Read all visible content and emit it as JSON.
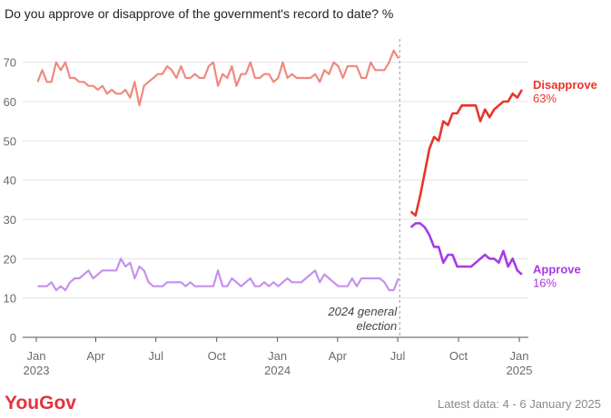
{
  "chart_data": {
    "type": "line",
    "title": "Do you approve or disapprove of the government's record to date? %",
    "ylim": [
      0,
      75
    ],
    "yticks": [
      0,
      10,
      20,
      30,
      40,
      50,
      60,
      70
    ],
    "grid": true,
    "xticks": [
      {
        "date": "2023-01-01",
        "label": "Jan",
        "label2": "2023"
      },
      {
        "date": "2023-04-01",
        "label": "Apr",
        "label2": ""
      },
      {
        "date": "2023-07-01",
        "label": "Jul",
        "label2": ""
      },
      {
        "date": "2023-10-01",
        "label": "Oct",
        "label2": ""
      },
      {
        "date": "2024-01-01",
        "label": "Jan",
        "label2": "2024"
      },
      {
        "date": "2024-04-01",
        "label": "Apr",
        "label2": ""
      },
      {
        "date": "2024-07-01",
        "label": "Jul",
        "label2": ""
      },
      {
        "date": "2024-10-01",
        "label": "Oct",
        "label2": ""
      },
      {
        "date": "2025-01-01",
        "label": "Jan",
        "label2": "2025"
      }
    ],
    "annotation": {
      "date": "2024-07-04",
      "lines": [
        "2024 general",
        "election"
      ]
    },
    "series": [
      {
        "name": "Disapprove",
        "end_label": "63%",
        "color": "#e8352b",
        "pre_color": "#f0897e",
        "points": [
          [
            "2023-01-03",
            65
          ],
          [
            "2023-01-10",
            68
          ],
          [
            "2023-01-17",
            65
          ],
          [
            "2023-01-24",
            65
          ],
          [
            "2023-01-31",
            70
          ],
          [
            "2023-02-07",
            68
          ],
          [
            "2023-02-14",
            70
          ],
          [
            "2023-02-21",
            66
          ],
          [
            "2023-02-28",
            66
          ],
          [
            "2023-03-07",
            65
          ],
          [
            "2023-03-14",
            65
          ],
          [
            "2023-03-21",
            64
          ],
          [
            "2023-03-28",
            64
          ],
          [
            "2023-04-04",
            63
          ],
          [
            "2023-04-11",
            64
          ],
          [
            "2023-04-18",
            62
          ],
          [
            "2023-04-25",
            63
          ],
          [
            "2023-05-02",
            62
          ],
          [
            "2023-05-09",
            62
          ],
          [
            "2023-05-16",
            63
          ],
          [
            "2023-05-23",
            61
          ],
          [
            "2023-05-30",
            65
          ],
          [
            "2023-06-06",
            59
          ],
          [
            "2023-06-13",
            64
          ],
          [
            "2023-06-20",
            65
          ],
          [
            "2023-06-27",
            66
          ],
          [
            "2023-07-04",
            67
          ],
          [
            "2023-07-11",
            67
          ],
          [
            "2023-07-18",
            69
          ],
          [
            "2023-07-25",
            68
          ],
          [
            "2023-08-01",
            66
          ],
          [
            "2023-08-08",
            69
          ],
          [
            "2023-08-15",
            66
          ],
          [
            "2023-08-22",
            66
          ],
          [
            "2023-08-29",
            67
          ],
          [
            "2023-09-05",
            66
          ],
          [
            "2023-09-12",
            66
          ],
          [
            "2023-09-19",
            69
          ],
          [
            "2023-09-26",
            70
          ],
          [
            "2023-10-03",
            64
          ],
          [
            "2023-10-10",
            67
          ],
          [
            "2023-10-17",
            66
          ],
          [
            "2023-10-24",
            69
          ],
          [
            "2023-10-31",
            64
          ],
          [
            "2023-11-07",
            67
          ],
          [
            "2023-11-14",
            67
          ],
          [
            "2023-11-21",
            70
          ],
          [
            "2023-11-28",
            66
          ],
          [
            "2023-12-05",
            66
          ],
          [
            "2023-12-12",
            67
          ],
          [
            "2023-12-19",
            67
          ],
          [
            "2023-12-26",
            65
          ],
          [
            "2024-01-02",
            66
          ],
          [
            "2024-01-09",
            70
          ],
          [
            "2024-01-16",
            66
          ],
          [
            "2024-01-23",
            67
          ],
          [
            "2024-01-30",
            66
          ],
          [
            "2024-02-06",
            66
          ],
          [
            "2024-02-13",
            66
          ],
          [
            "2024-02-20",
            66
          ],
          [
            "2024-02-27",
            67
          ],
          [
            "2024-03-05",
            65
          ],
          [
            "2024-03-12",
            68
          ],
          [
            "2024-03-19",
            67
          ],
          [
            "2024-03-26",
            70
          ],
          [
            "2024-04-02",
            69
          ],
          [
            "2024-04-09",
            66
          ],
          [
            "2024-04-16",
            69
          ],
          [
            "2024-04-23",
            69
          ],
          [
            "2024-04-30",
            69
          ],
          [
            "2024-05-07",
            66
          ],
          [
            "2024-05-14",
            66
          ],
          [
            "2024-05-21",
            70
          ],
          [
            "2024-05-28",
            68
          ],
          [
            "2024-06-04",
            68
          ],
          [
            "2024-06-11",
            68
          ],
          [
            "2024-06-18",
            70
          ],
          [
            "2024-06-25",
            73
          ],
          [
            "2024-07-02",
            71
          ]
        ],
        "post_points": [
          [
            "2024-07-21",
            32
          ],
          [
            "2024-07-28",
            31
          ],
          [
            "2024-08-04",
            36
          ],
          [
            "2024-08-11",
            42
          ],
          [
            "2024-08-18",
            48
          ],
          [
            "2024-08-25",
            51
          ],
          [
            "2024-09-01",
            50
          ],
          [
            "2024-09-08",
            55
          ],
          [
            "2024-09-15",
            54
          ],
          [
            "2024-09-22",
            57
          ],
          [
            "2024-09-29",
            57
          ],
          [
            "2024-10-06",
            59
          ],
          [
            "2024-10-13",
            59
          ],
          [
            "2024-10-20",
            59
          ],
          [
            "2024-10-27",
            59
          ],
          [
            "2024-11-03",
            55
          ],
          [
            "2024-11-10",
            58
          ],
          [
            "2024-11-17",
            56
          ],
          [
            "2024-11-24",
            58
          ],
          [
            "2024-12-01",
            59
          ],
          [
            "2024-12-08",
            60
          ],
          [
            "2024-12-15",
            60
          ],
          [
            "2024-12-22",
            62
          ],
          [
            "2024-12-29",
            61
          ],
          [
            "2025-01-05",
            63
          ]
        ]
      },
      {
        "name": "Approve",
        "end_label": "16%",
        "color": "#a73ae6",
        "pre_color": "#c590ee",
        "points": [
          [
            "2023-01-03",
            13
          ],
          [
            "2023-01-10",
            13
          ],
          [
            "2023-01-17",
            13
          ],
          [
            "2023-01-24",
            14
          ],
          [
            "2023-01-31",
            12
          ],
          [
            "2023-02-07",
            13
          ],
          [
            "2023-02-14",
            12
          ],
          [
            "2023-02-21",
            14
          ],
          [
            "2023-02-28",
            15
          ],
          [
            "2023-03-07",
            15
          ],
          [
            "2023-03-14",
            16
          ],
          [
            "2023-03-21",
            17
          ],
          [
            "2023-03-28",
            15
          ],
          [
            "2023-04-04",
            16
          ],
          [
            "2023-04-11",
            17
          ],
          [
            "2023-04-18",
            17
          ],
          [
            "2023-04-25",
            17
          ],
          [
            "2023-05-02",
            17
          ],
          [
            "2023-05-09",
            20
          ],
          [
            "2023-05-16",
            18
          ],
          [
            "2023-05-23",
            19
          ],
          [
            "2023-05-30",
            15
          ],
          [
            "2023-06-06",
            18
          ],
          [
            "2023-06-13",
            17
          ],
          [
            "2023-06-20",
            14
          ],
          [
            "2023-06-27",
            13
          ],
          [
            "2023-07-04",
            13
          ],
          [
            "2023-07-11",
            13
          ],
          [
            "2023-07-18",
            14
          ],
          [
            "2023-07-25",
            14
          ],
          [
            "2023-08-01",
            14
          ],
          [
            "2023-08-08",
            14
          ],
          [
            "2023-08-15",
            13
          ],
          [
            "2023-08-22",
            14
          ],
          [
            "2023-08-29",
            13
          ],
          [
            "2023-09-05",
            13
          ],
          [
            "2023-09-12",
            13
          ],
          [
            "2023-09-19",
            13
          ],
          [
            "2023-09-26",
            13
          ],
          [
            "2023-10-03",
            17
          ],
          [
            "2023-10-10",
            13
          ],
          [
            "2023-10-17",
            13
          ],
          [
            "2023-10-24",
            15
          ],
          [
            "2023-10-31",
            14
          ],
          [
            "2023-11-07",
            13
          ],
          [
            "2023-11-14",
            14
          ],
          [
            "2023-11-21",
            15
          ],
          [
            "2023-11-28",
            13
          ],
          [
            "2023-12-05",
            13
          ],
          [
            "2023-12-12",
            14
          ],
          [
            "2023-12-19",
            13
          ],
          [
            "2023-12-26",
            14
          ],
          [
            "2024-01-02",
            13
          ],
          [
            "2024-01-09",
            14
          ],
          [
            "2024-01-16",
            15
          ],
          [
            "2024-01-23",
            14
          ],
          [
            "2024-01-30",
            14
          ],
          [
            "2024-02-06",
            14
          ],
          [
            "2024-02-13",
            15
          ],
          [
            "2024-02-20",
            16
          ],
          [
            "2024-02-27",
            17
          ],
          [
            "2024-03-05",
            14
          ],
          [
            "2024-03-12",
            16
          ],
          [
            "2024-03-19",
            15
          ],
          [
            "2024-03-26",
            14
          ],
          [
            "2024-04-02",
            13
          ],
          [
            "2024-04-09",
            13
          ],
          [
            "2024-04-16",
            13
          ],
          [
            "2024-04-23",
            15
          ],
          [
            "2024-04-30",
            13
          ],
          [
            "2024-05-07",
            15
          ],
          [
            "2024-05-14",
            15
          ],
          [
            "2024-05-21",
            15
          ],
          [
            "2024-05-28",
            15
          ],
          [
            "2024-06-04",
            15
          ],
          [
            "2024-06-11",
            14
          ],
          [
            "2024-06-18",
            12
          ],
          [
            "2024-06-25",
            12
          ],
          [
            "2024-07-02",
            15
          ]
        ],
        "post_points": [
          [
            "2024-07-21",
            28
          ],
          [
            "2024-07-28",
            29
          ],
          [
            "2024-08-04",
            29
          ],
          [
            "2024-08-11",
            28
          ],
          [
            "2024-08-18",
            26
          ],
          [
            "2024-08-25",
            23
          ],
          [
            "2024-09-01",
            23
          ],
          [
            "2024-09-08",
            19
          ],
          [
            "2024-09-15",
            21
          ],
          [
            "2024-09-22",
            21
          ],
          [
            "2024-09-29",
            18
          ],
          [
            "2024-10-06",
            18
          ],
          [
            "2024-10-13",
            18
          ],
          [
            "2024-10-20",
            18
          ],
          [
            "2024-10-27",
            19
          ],
          [
            "2024-11-03",
            20
          ],
          [
            "2024-11-10",
            21
          ],
          [
            "2024-11-17",
            20
          ],
          [
            "2024-11-24",
            20
          ],
          [
            "2024-12-01",
            19
          ],
          [
            "2024-12-08",
            22
          ],
          [
            "2024-12-15",
            18
          ],
          [
            "2024-12-22",
            20
          ],
          [
            "2024-12-29",
            17
          ],
          [
            "2025-01-05",
            16
          ]
        ]
      }
    ]
  },
  "branding": {
    "logo_text": "YouGov"
  },
  "footer": {
    "latest_data": "Latest data: 4 - 6 January 2025"
  }
}
